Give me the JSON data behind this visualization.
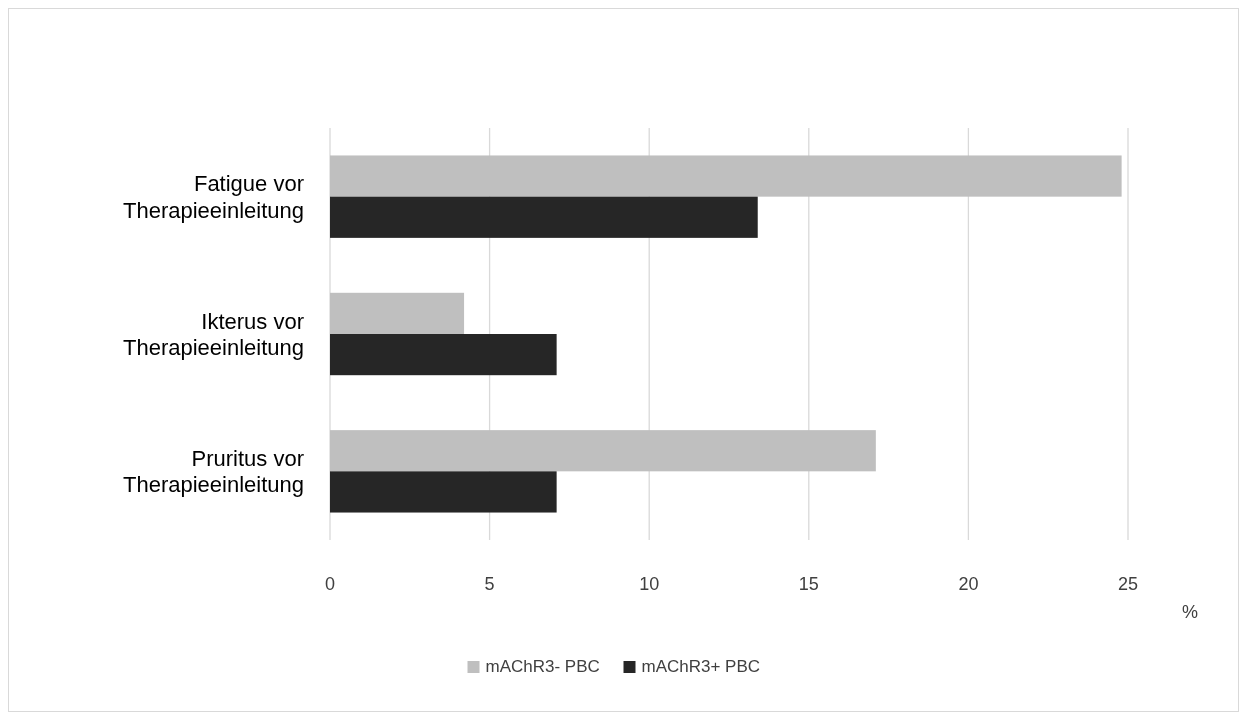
{
  "chart_data": {
    "type": "bar",
    "orientation": "horizontal",
    "categories": [
      "Fatigue vor Therapieeinleitung",
      "Ikterus vor Therapieeinleitung",
      "Pruritus vor Therapieeinleitung"
    ],
    "series": [
      {
        "name": "mAChR3- PBC",
        "color": "#bfbfbf",
        "values": [
          24.8,
          4.2,
          17.1
        ]
      },
      {
        "name": "mAChR3+ PBC",
        "color": "#262626",
        "values": [
          13.4,
          7.1,
          7.1
        ]
      }
    ],
    "xlim": [
      0,
      25
    ],
    "xticks": [
      0,
      5,
      10,
      15,
      20,
      25
    ],
    "xlabel": "%",
    "grid": "x",
    "legend": "bottom"
  }
}
